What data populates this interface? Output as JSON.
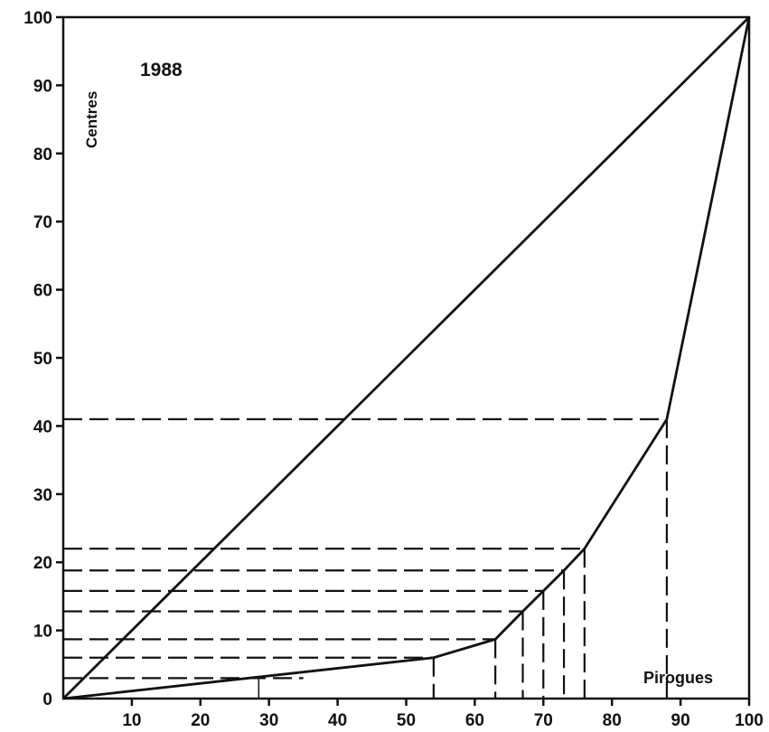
{
  "chart_data": {
    "type": "line",
    "title": "",
    "annotation_year": "1988",
    "xlabel": "Pirogues",
    "ylabel": "Centres",
    "xlim": [
      0,
      100
    ],
    "ylim": [
      0,
      100
    ],
    "x_ticks": [
      10,
      20,
      30,
      40,
      50,
      60,
      70,
      80,
      90,
      100
    ],
    "y_ticks": [
      0,
      10,
      20,
      30,
      40,
      50,
      60,
      70,
      80,
      90,
      100
    ],
    "grid": false,
    "legend": "none",
    "series": [
      {
        "role": "equality-line",
        "x": [
          0,
          100
        ],
        "y": [
          0,
          100
        ]
      },
      {
        "role": "lorenz-curve",
        "x": [
          0,
          54,
          63,
          67,
          70,
          73,
          76,
          88,
          100
        ],
        "y": [
          0,
          6,
          8.7,
          12.8,
          15.8,
          18.8,
          22,
          41,
          100
        ]
      }
    ],
    "dashed_levels": [
      {
        "x": 54,
        "y": 6
      },
      {
        "x": 63,
        "y": 8.7
      },
      {
        "x": 67,
        "y": 12.8
      },
      {
        "x": 70,
        "y": 15.8
      },
      {
        "x": 73,
        "y": 18.8
      },
      {
        "x": 76,
        "y": 22
      },
      {
        "x": 88,
        "y": 41
      }
    ],
    "extra_dashed_y": [
      3
    ],
    "marker_x": [
      28.5
    ]
  }
}
